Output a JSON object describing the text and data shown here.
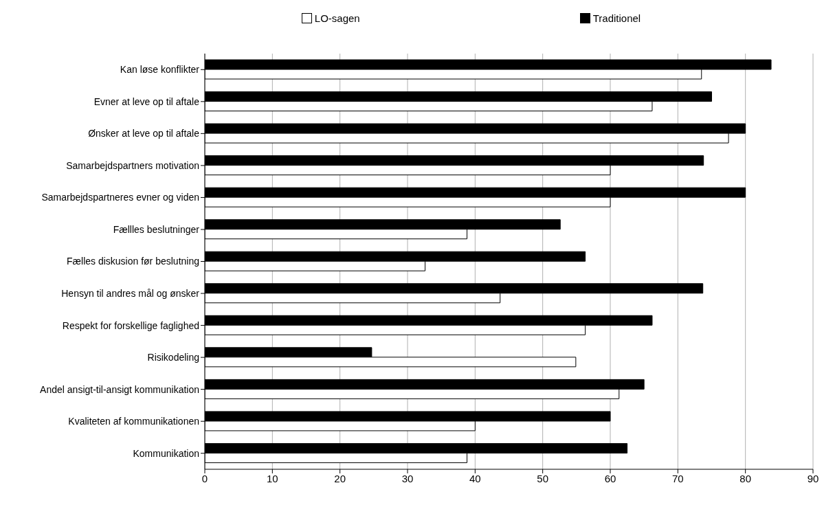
{
  "chart_data": {
    "type": "bar",
    "orientation": "horizontal",
    "categories": [
      "Kan løse konflikter",
      "Evner at leve op til aftale",
      "Ønsker at leve op til aftale",
      "Samarbejdspartners motivation",
      "Samarbejdspartneres evner og viden",
      "Fællles beslutninger",
      "Fælles diskusion før beslutning",
      "Hensyn til andres mål og ønsker",
      "Respekt for forskellige faglighed",
      "Risikodeling",
      "Andel ansigt-til-ansigt kommunikation",
      "Kvaliteten af kommunikationen",
      "Kommunikation"
    ],
    "series": [
      {
        "name": "LO-sagen",
        "color": "#ffffff",
        "values": [
          73.5,
          66.2,
          77.5,
          60,
          60,
          38.8,
          32.6,
          43.7,
          56.3,
          54.9,
          61.3,
          40,
          38.8
        ]
      },
      {
        "name": "Traditionel",
        "color": "#000000",
        "values": [
          83.8,
          75,
          80,
          73.8,
          80,
          52.6,
          56.3,
          73.7,
          66.2,
          24.7,
          65,
          60,
          62.5
        ]
      }
    ],
    "xlim": [
      0,
      90
    ],
    "xticks": [
      0,
      10,
      20,
      30,
      40,
      50,
      60,
      70,
      80,
      90
    ],
    "grid": "x",
    "legend": "top"
  }
}
